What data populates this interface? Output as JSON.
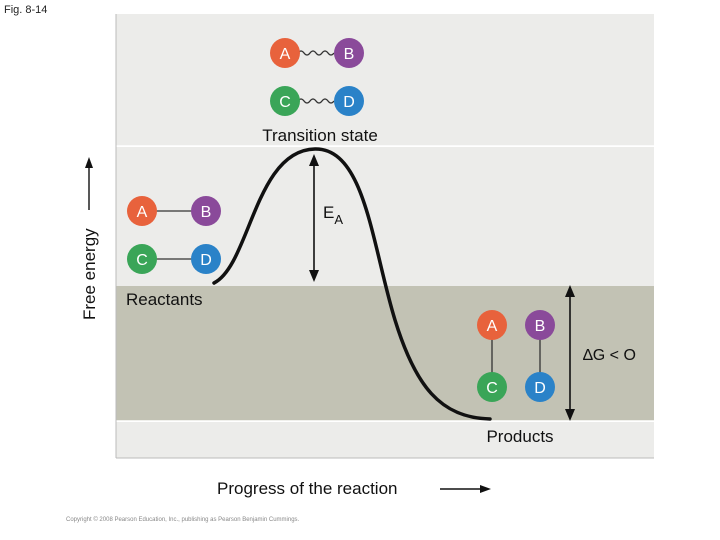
{
  "figure": {
    "label": "Fig. 8-14",
    "copyright": "Copyright © 2008 Pearson Education, Inc., publishing as Pearson Benjamin Cummings."
  },
  "axes": {
    "y_label": "Free energy",
    "x_label": "Progress of the reaction"
  },
  "labels": {
    "transition_state": "Transition state",
    "reactants": "Reactants",
    "products": "Products",
    "activation_energy_main": "E",
    "activation_energy_sub": "A",
    "delta_g": "∆G < O"
  },
  "molecules": {
    "transition": {
      "top": [
        "A",
        "B"
      ],
      "bottom": [
        "C",
        "D"
      ]
    },
    "reactants": {
      "top": [
        "A",
        "B"
      ],
      "bottom": [
        "C",
        "D"
      ]
    },
    "products": {
      "left": [
        "A",
        "C"
      ],
      "right": [
        "B",
        "D"
      ]
    }
  },
  "colors": {
    "A": "#e8623c",
    "B": "#8a4a9a",
    "C": "#3aa558",
    "D": "#2a82c8",
    "panel_top": "#ececea",
    "panel_band": "#c2c2b4",
    "panel_bottom": "#ececea"
  }
}
